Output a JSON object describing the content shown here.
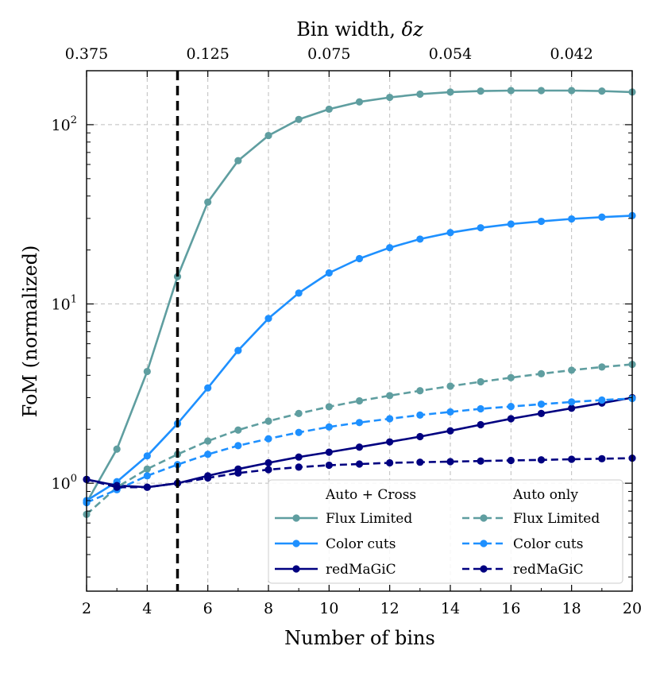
{
  "chart_data": {
    "type": "line",
    "xlabel": "Number of bins",
    "ylabel": "FoM (normalized)",
    "top_axis_label_text": "Bin width, ",
    "top_axis_label_symbol": "δz",
    "xlim": [
      2,
      20
    ],
    "ylim": [
      0.25,
      200
    ],
    "yscale": "log",
    "x_ticks": [
      2,
      4,
      6,
      8,
      10,
      12,
      14,
      16,
      18,
      20
    ],
    "y_ticks": [
      {
        "value": 1,
        "base": "10",
        "exp": "0"
      },
      {
        "value": 10,
        "base": "10",
        "exp": "1"
      },
      {
        "value": 100,
        "base": "10",
        "exp": "2"
      }
    ],
    "top_ticks": [
      {
        "x": 2,
        "label": "0.375"
      },
      {
        "x": 6,
        "label": "0.125"
      },
      {
        "x": 10,
        "label": "0.075"
      },
      {
        "x": 14,
        "label": "0.054"
      },
      {
        "x": 18,
        "label": "0.042"
      }
    ],
    "vline_x": 5,
    "grid": true,
    "x": [
      2,
      3,
      4,
      5,
      6,
      7,
      8,
      9,
      10,
      11,
      12,
      13,
      14,
      15,
      16,
      17,
      18,
      19,
      20
    ],
    "series": [
      {
        "name": "Flux Limited",
        "group": "Auto + Cross",
        "color": "#5f9ea0",
        "dashed": false,
        "values": [
          0.78,
          1.55,
          4.2,
          14.2,
          37,
          63,
          87,
          107,
          122,
          134,
          142,
          148,
          152,
          154,
          155,
          155,
          155,
          154,
          152
        ]
      },
      {
        "name": "Color cuts",
        "group": "Auto + Cross",
        "color": "#1e90ff",
        "dashed": false,
        "values": [
          0.8,
          1.02,
          1.42,
          2.15,
          3.4,
          5.5,
          8.3,
          11.5,
          14.9,
          17.9,
          20.6,
          23.0,
          25.0,
          26.6,
          27.9,
          28.9,
          29.8,
          30.5,
          31.1
        ]
      },
      {
        "name": "redMaGiC",
        "group": "Auto + Cross",
        "color": "#000080",
        "dashed": false,
        "values": [
          1.05,
          0.97,
          0.95,
          1.0,
          1.1,
          1.2,
          1.3,
          1.4,
          1.49,
          1.59,
          1.7,
          1.82,
          1.96,
          2.12,
          2.29,
          2.45,
          2.62,
          2.8,
          3.0
        ]
      },
      {
        "name": "Flux Limited",
        "group": "Auto only",
        "color": "#5f9ea0",
        "dashed": true,
        "values": [
          0.67,
          0.95,
          1.2,
          1.45,
          1.72,
          1.98,
          2.22,
          2.45,
          2.67,
          2.88,
          3.08,
          3.28,
          3.48,
          3.68,
          3.88,
          4.08,
          4.27,
          4.45,
          4.6
        ]
      },
      {
        "name": "Color cuts",
        "group": "Auto only",
        "color": "#1e90ff",
        "dashed": true,
        "values": [
          0.78,
          0.92,
          1.1,
          1.27,
          1.45,
          1.62,
          1.77,
          1.92,
          2.06,
          2.18,
          2.29,
          2.4,
          2.5,
          2.6,
          2.68,
          2.76,
          2.84,
          2.91,
          2.97
        ]
      },
      {
        "name": "redMaGiC",
        "group": "Auto only",
        "color": "#000080",
        "dashed": true,
        "values": [
          1.05,
          0.95,
          0.95,
          1.0,
          1.07,
          1.14,
          1.19,
          1.23,
          1.26,
          1.28,
          1.3,
          1.31,
          1.32,
          1.33,
          1.34,
          1.35,
          1.36,
          1.37,
          1.38
        ]
      }
    ],
    "legend": {
      "location": "lower-right",
      "columns": [
        {
          "title": "Auto + Cross",
          "series_indices": [
            0,
            1,
            2
          ]
        },
        {
          "title": "Auto only",
          "series_indices": [
            3,
            4,
            5
          ]
        }
      ]
    }
  }
}
